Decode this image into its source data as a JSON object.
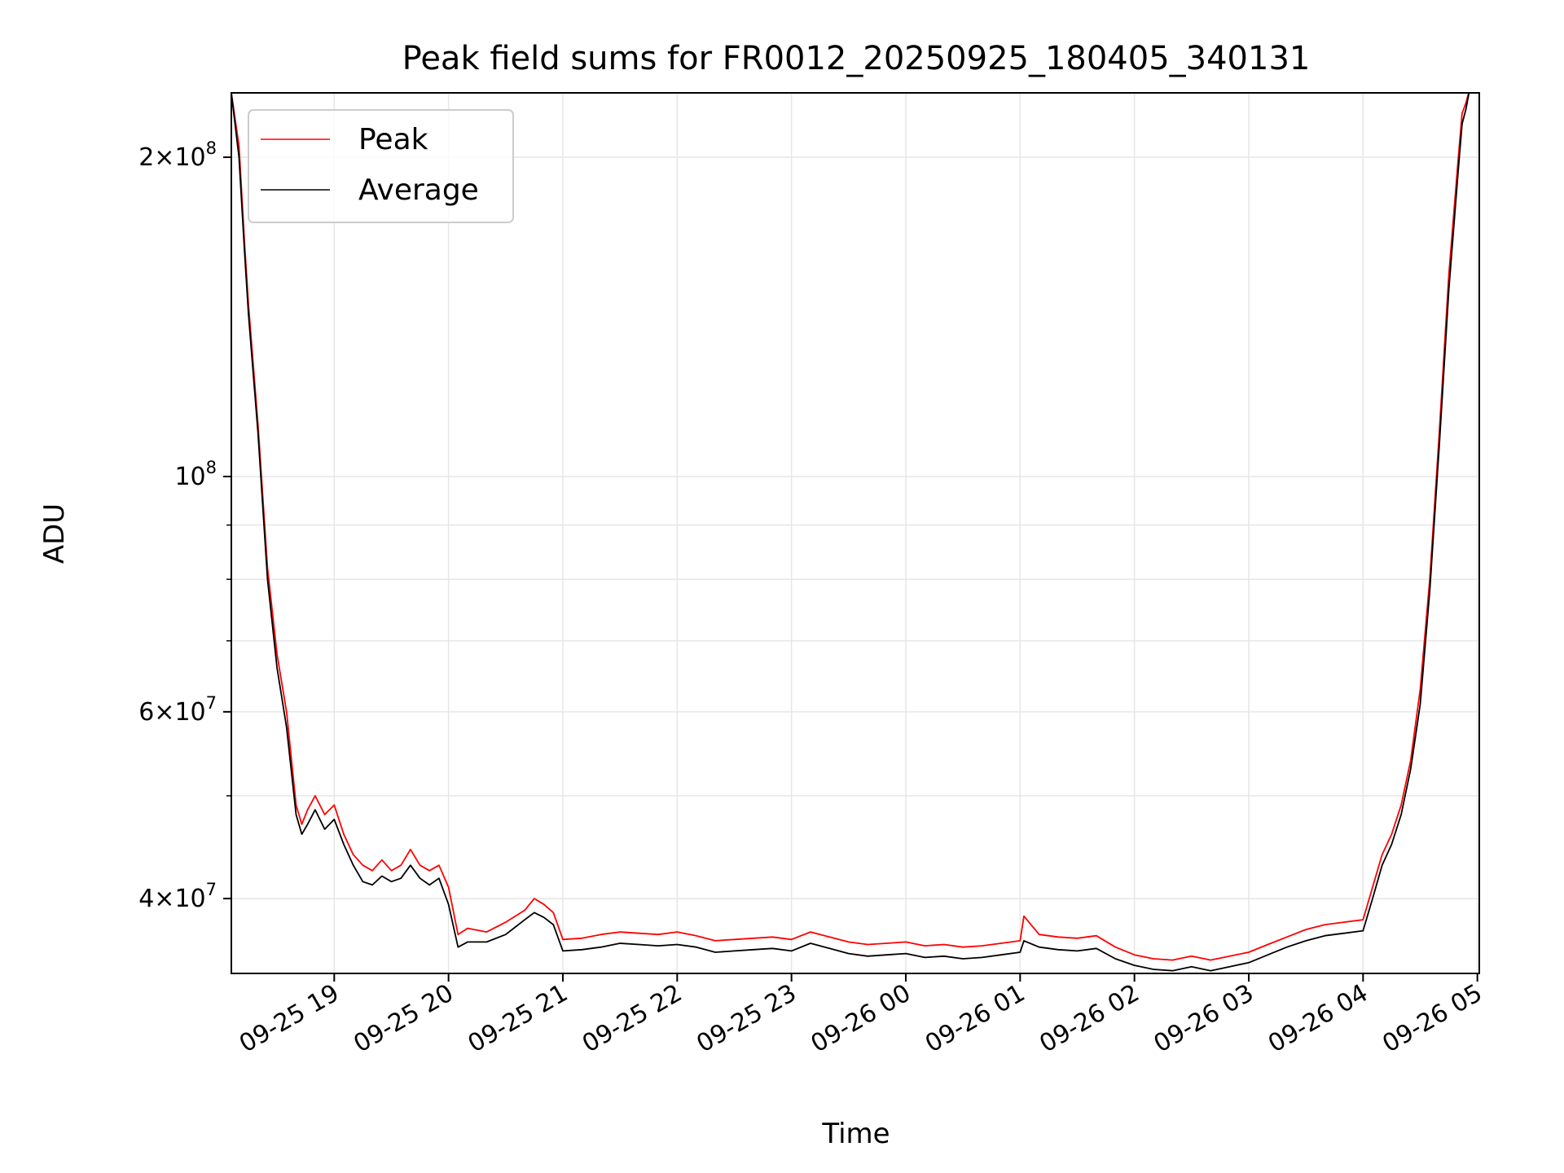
{
  "chart_data": {
    "type": "line",
    "title": "Peak field sums for FR0012_20250925_180405_340131",
    "xlabel": "Time",
    "ylabel": "ADU",
    "x_range": [
      "2025-09-25 18:06",
      "2025-09-26 05:01"
    ],
    "ylim": [
      34000000,
      230000000
    ],
    "y_scale": "log",
    "grid": true,
    "legend_position": "upper-left",
    "x_ticks": [
      {
        "label": "09-25 19",
        "time": "2025-09-25 19:00"
      },
      {
        "label": "09-25 20",
        "time": "2025-09-25 20:00"
      },
      {
        "label": "09-25 21",
        "time": "2025-09-25 21:00"
      },
      {
        "label": "09-25 22",
        "time": "2025-09-25 22:00"
      },
      {
        "label": "09-25 23",
        "time": "2025-09-25 23:00"
      },
      {
        "label": "09-26 00",
        "time": "2025-09-26 00:00"
      },
      {
        "label": "09-26 01",
        "time": "2025-09-26 01:00"
      },
      {
        "label": "09-26 02",
        "time": "2025-09-26 02:00"
      },
      {
        "label": "09-26 03",
        "time": "2025-09-26 03:00"
      },
      {
        "label": "09-26 04",
        "time": "2025-09-26 04:00"
      },
      {
        "label": "09-26 05",
        "time": "2025-09-26 05:00"
      }
    ],
    "y_ticks_major": [
      {
        "value": 40000000,
        "mantissa": "4",
        "base": "10",
        "exp": "7"
      },
      {
        "value": 60000000,
        "mantissa": "6",
        "base": "10",
        "exp": "7"
      },
      {
        "value": 100000000,
        "mantissa": "",
        "base": "10",
        "exp": "8"
      },
      {
        "value": 200000000,
        "mantissa": "2",
        "base": "10",
        "exp": "8"
      }
    ],
    "y_ticks_minor": [
      50000000,
      70000000,
      80000000,
      90000000
    ],
    "series": [
      {
        "name": "Peak",
        "color": "#ff0000",
        "x": [
          "2025-09-25 18:06",
          "2025-09-25 18:10",
          "2025-09-25 18:13",
          "2025-09-25 18:15",
          "2025-09-25 18:20",
          "2025-09-25 18:25",
          "2025-09-25 18:30",
          "2025-09-25 18:35",
          "2025-09-25 18:40",
          "2025-09-25 18:43",
          "2025-09-25 18:46",
          "2025-09-25 18:50",
          "2025-09-25 18:55",
          "2025-09-25 19:00",
          "2025-09-25 19:05",
          "2025-09-25 19:10",
          "2025-09-25 19:15",
          "2025-09-25 19:20",
          "2025-09-25 19:25",
          "2025-09-25 19:30",
          "2025-09-25 19:35",
          "2025-09-25 19:40",
          "2025-09-25 19:45",
          "2025-09-25 19:50",
          "2025-09-25 19:55",
          "2025-09-25 20:00",
          "2025-09-25 20:05",
          "2025-09-25 20:10",
          "2025-09-25 20:20",
          "2025-09-25 20:30",
          "2025-09-25 20:40",
          "2025-09-25 20:45",
          "2025-09-25 20:50",
          "2025-09-25 20:55",
          "2025-09-25 21:00",
          "2025-09-25 21:10",
          "2025-09-25 21:20",
          "2025-09-25 21:30",
          "2025-09-25 21:40",
          "2025-09-25 21:50",
          "2025-09-25 22:00",
          "2025-09-25 22:10",
          "2025-09-25 22:20",
          "2025-09-25 22:30",
          "2025-09-25 22:40",
          "2025-09-25 22:50",
          "2025-09-25 23:00",
          "2025-09-25 23:10",
          "2025-09-25 23:20",
          "2025-09-25 23:30",
          "2025-09-25 23:40",
          "2025-09-25 23:50",
          "2025-09-26 00:00",
          "2025-09-26 00:10",
          "2025-09-26 00:20",
          "2025-09-26 00:30",
          "2025-09-26 00:40",
          "2025-09-26 00:50",
          "2025-09-26 01:00",
          "2025-09-26 01:02",
          "2025-09-26 01:10",
          "2025-09-26 01:20",
          "2025-09-26 01:30",
          "2025-09-26 01:40",
          "2025-09-26 01:50",
          "2025-09-26 02:00",
          "2025-09-26 02:10",
          "2025-09-26 02:20",
          "2025-09-26 02:30",
          "2025-09-26 02:40",
          "2025-09-26 02:50",
          "2025-09-26 03:00",
          "2025-09-26 03:10",
          "2025-09-26 03:20",
          "2025-09-26 03:30",
          "2025-09-26 03:40",
          "2025-09-26 03:50",
          "2025-09-26 04:00",
          "2025-09-26 04:05",
          "2025-09-26 04:10",
          "2025-09-26 04:15",
          "2025-09-26 04:20",
          "2025-09-26 04:25",
          "2025-09-26 04:30",
          "2025-09-26 04:35",
          "2025-09-26 04:40",
          "2025-09-26 04:45",
          "2025-09-26 04:50",
          "2025-09-26 04:52",
          "2025-09-26 04:54",
          "2025-09-26 04:56"
        ],
        "y": [
          230000000,
          205000000,
          165000000,
          145000000,
          112000000,
          82000000,
          68000000,
          60000000,
          49000000,
          47000000,
          48500000,
          50000000,
          48000000,
          49000000,
          46000000,
          44000000,
          43000000,
          42500000,
          43500000,
          42500000,
          43000000,
          44500000,
          43000000,
          42500000,
          43000000,
          41000000,
          37000000,
          37500000,
          37200000,
          38000000,
          39000000,
          40000000,
          39500000,
          38800000,
          36600000,
          36700000,
          37000000,
          37200000,
          37100000,
          37000000,
          37200000,
          36900000,
          36500000,
          36600000,
          36700000,
          36800000,
          36600000,
          37200000,
          36800000,
          36400000,
          36200000,
          36300000,
          36400000,
          36100000,
          36200000,
          36000000,
          36100000,
          36300000,
          36500000,
          38500000,
          37000000,
          36800000,
          36700000,
          36900000,
          36000000,
          35400000,
          35100000,
          35000000,
          35300000,
          35000000,
          35300000,
          35600000,
          36200000,
          36800000,
          37400000,
          37800000,
          38000000,
          38200000,
          41000000,
          44000000,
          46000000,
          49000000,
          54000000,
          63000000,
          80000000,
          110000000,
          155000000,
          200000000,
          220000000,
          225000000,
          232000000
        ]
      },
      {
        "name": "Average",
        "color": "#000000",
        "x": [
          "2025-09-25 18:06",
          "2025-09-25 18:10",
          "2025-09-25 18:13",
          "2025-09-25 18:15",
          "2025-09-25 18:20",
          "2025-09-25 18:25",
          "2025-09-25 18:30",
          "2025-09-25 18:35",
          "2025-09-25 18:40",
          "2025-09-25 18:43",
          "2025-09-25 18:46",
          "2025-09-25 18:50",
          "2025-09-25 18:55",
          "2025-09-25 19:00",
          "2025-09-25 19:05",
          "2025-09-25 19:10",
          "2025-09-25 19:15",
          "2025-09-25 19:20",
          "2025-09-25 19:25",
          "2025-09-25 19:30",
          "2025-09-25 19:35",
          "2025-09-25 19:40",
          "2025-09-25 19:45",
          "2025-09-25 19:50",
          "2025-09-25 19:55",
          "2025-09-25 20:00",
          "2025-09-25 20:05",
          "2025-09-25 20:10",
          "2025-09-25 20:20",
          "2025-09-25 20:30",
          "2025-09-25 20:40",
          "2025-09-25 20:45",
          "2025-09-25 20:50",
          "2025-09-25 20:55",
          "2025-09-25 21:00",
          "2025-09-25 21:10",
          "2025-09-25 21:20",
          "2025-09-25 21:30",
          "2025-09-25 21:40",
          "2025-09-25 21:50",
          "2025-09-25 22:00",
          "2025-09-25 22:10",
          "2025-09-25 22:20",
          "2025-09-25 22:30",
          "2025-09-25 22:40",
          "2025-09-25 22:50",
          "2025-09-25 23:00",
          "2025-09-25 23:10",
          "2025-09-25 23:20",
          "2025-09-25 23:30",
          "2025-09-25 23:40",
          "2025-09-25 23:50",
          "2025-09-26 00:00",
          "2025-09-26 00:10",
          "2025-09-26 00:20",
          "2025-09-26 00:30",
          "2025-09-26 00:40",
          "2025-09-26 00:50",
          "2025-09-26 01:00",
          "2025-09-26 01:02",
          "2025-09-26 01:10",
          "2025-09-26 01:20",
          "2025-09-26 01:30",
          "2025-09-26 01:40",
          "2025-09-26 01:50",
          "2025-09-26 02:00",
          "2025-09-26 02:10",
          "2025-09-26 02:20",
          "2025-09-26 02:30",
          "2025-09-26 02:40",
          "2025-09-26 02:50",
          "2025-09-26 03:00",
          "2025-09-26 03:10",
          "2025-09-26 03:20",
          "2025-09-26 03:30",
          "2025-09-26 03:40",
          "2025-09-26 03:50",
          "2025-09-26 04:00",
          "2025-09-26 04:05",
          "2025-09-26 04:10",
          "2025-09-26 04:15",
          "2025-09-26 04:20",
          "2025-09-26 04:25",
          "2025-09-26 04:30",
          "2025-09-26 04:35",
          "2025-09-26 04:40",
          "2025-09-26 04:45",
          "2025-09-26 04:50",
          "2025-09-26 04:52",
          "2025-09-26 04:54",
          "2025-09-26 04:56"
        ],
        "y": [
          230000000,
          200000000,
          162000000,
          142000000,
          110000000,
          80000000,
          66000000,
          58000000,
          48000000,
          46000000,
          47000000,
          48500000,
          46500000,
          47500000,
          45000000,
          43000000,
          41500000,
          41200000,
          42000000,
          41500000,
          41800000,
          43000000,
          41800000,
          41200000,
          41800000,
          39500000,
          36000000,
          36400000,
          36400000,
          37000000,
          38200000,
          38800000,
          38400000,
          37800000,
          35700000,
          35800000,
          36000000,
          36300000,
          36200000,
          36100000,
          36200000,
          36000000,
          35600000,
          35700000,
          35800000,
          35900000,
          35700000,
          36300000,
          35900000,
          35500000,
          35300000,
          35400000,
          35500000,
          35200000,
          35300000,
          35100000,
          35200000,
          35400000,
          35600000,
          36500000,
          36000000,
          35800000,
          35700000,
          35900000,
          35100000,
          34600000,
          34300000,
          34200000,
          34500000,
          34200000,
          34500000,
          34800000,
          35400000,
          36000000,
          36500000,
          36900000,
          37100000,
          37300000,
          40000000,
          43000000,
          45000000,
          48000000,
          53000000,
          61000000,
          78000000,
          107000000,
          150000000,
          195000000,
          215000000,
          222000000,
          232000000
        ]
      }
    ]
  }
}
